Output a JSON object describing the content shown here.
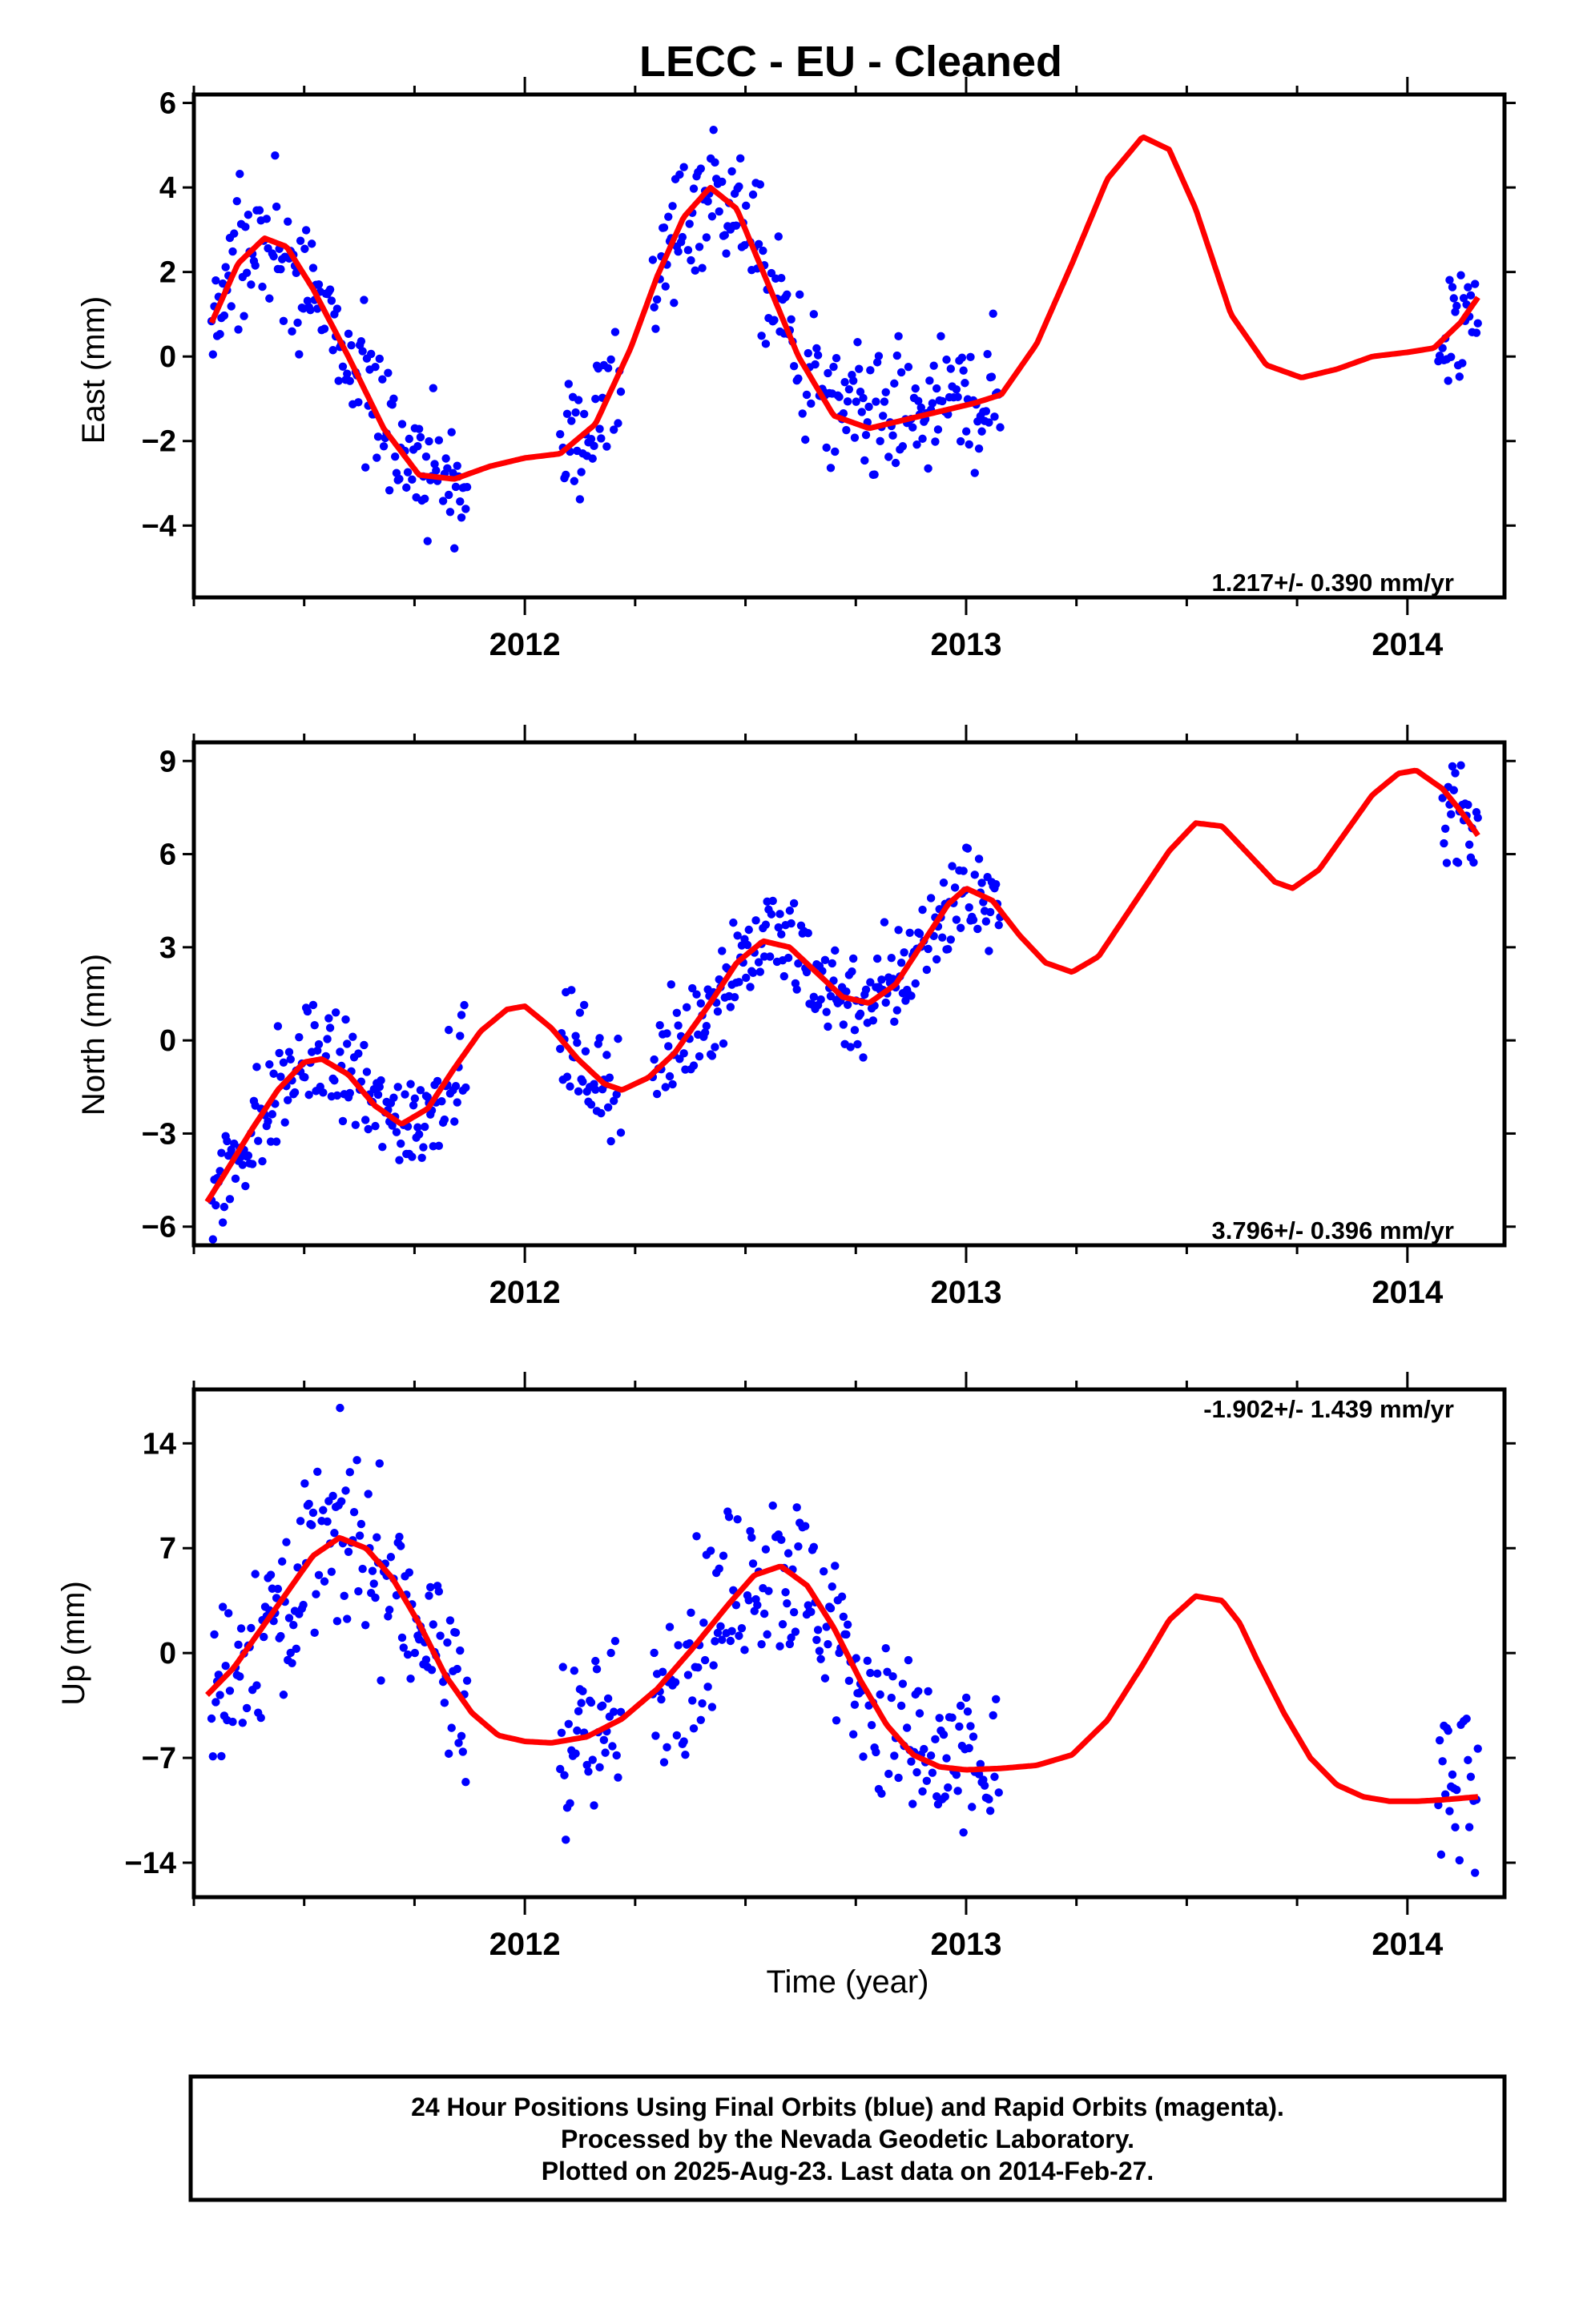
{
  "title": "LECC  - EU - Cleaned",
  "xlabel": "Time (year)",
  "footer": {
    "line1": "24 Hour Positions Using Final Orbits (blue) and Rapid Orbits (magenta).",
    "line2": "Processed by the Nevada Geodetic Laboratory.",
    "line3": "Plotted on 2025-Aug-23. Last data on 2014-Feb-27."
  },
  "colors": {
    "observations": "#0000ff",
    "model_fit": "#ff0000",
    "frame": "#000000"
  },
  "chart_data": [
    {
      "type": "scatter",
      "component": "east",
      "ylabel": "East (mm)",
      "rate_text": "1.217+/- 0.390 mm/yr",
      "rate_placement": "bottom-right",
      "xlim": [
        2011.25,
        2014.22
      ],
      "ylim": [
        -5.7,
        6.2
      ],
      "yticks": [
        -4,
        -2,
        0,
        2,
        4,
        6
      ],
      "xticks": [
        2012,
        2013,
        2014
      ],
      "grid": false,
      "data_segments": [
        [
          2011.29,
          2011.87
        ],
        [
          2012.08,
          2012.22
        ],
        [
          2012.29,
          2013.08
        ],
        [
          2014.07,
          2014.16
        ]
      ],
      "series": [
        {
          "style": "model",
          "x": [
            2011.29,
            2011.35,
            2011.41,
            2011.46,
            2011.52,
            2011.6,
            2011.68,
            2011.76,
            2011.84,
            2011.92,
            2012.0,
            2012.08,
            2012.16,
            2012.24,
            2012.3,
            2012.36,
            2012.42,
            2012.48,
            2012.54,
            2012.62,
            2012.7,
            2012.78,
            2012.86,
            2012.94,
            2013.02,
            2013.08,
            2013.16,
            2013.24,
            2013.32,
            2013.4,
            2013.46,
            2013.52,
            2013.6,
            2013.68,
            2013.76,
            2013.84,
            2013.92,
            2014.0,
            2014.06,
            2014.12,
            2014.16
          ],
          "y": [
            0.8,
            2.2,
            2.8,
            2.6,
            1.6,
            0.0,
            -1.7,
            -2.8,
            -2.9,
            -2.6,
            -2.4,
            -2.3,
            -1.6,
            0.2,
            1.9,
            3.3,
            4.0,
            3.5,
            2.0,
            0.0,
            -1.4,
            -1.7,
            -1.5,
            -1.3,
            -1.1,
            -0.9,
            0.3,
            2.2,
            4.2,
            5.2,
            4.9,
            3.5,
            1.0,
            -0.2,
            -0.5,
            -0.3,
            0.0,
            0.1,
            0.2,
            0.8,
            1.4
          ]
        }
      ]
    },
    {
      "type": "scatter",
      "component": "north",
      "ylabel": "North (mm)",
      "rate_text": "3.796+/- 0.396 mm/yr",
      "rate_placement": "bottom-right",
      "xlim": [
        2011.25,
        2014.22
      ],
      "ylim": [
        -6.6,
        9.6
      ],
      "yticks": [
        -6,
        -3,
        0,
        3,
        6,
        9
      ],
      "xticks": [
        2012,
        2013,
        2014
      ],
      "grid": false,
      "data_segments": [
        [
          2011.29,
          2011.87
        ],
        [
          2012.08,
          2012.22
        ],
        [
          2012.29,
          2013.08
        ],
        [
          2014.07,
          2014.16
        ]
      ],
      "series": [
        {
          "style": "model",
          "x": [
            2011.28,
            2011.32,
            2011.38,
            2011.44,
            2011.5,
            2011.54,
            2011.6,
            2011.66,
            2011.72,
            2011.78,
            2011.84,
            2011.9,
            2011.96,
            2012.0,
            2012.06,
            2012.12,
            2012.18,
            2012.22,
            2012.28,
            2012.34,
            2012.42,
            2012.48,
            2012.54,
            2012.6,
            2012.66,
            2012.72,
            2012.78,
            2012.84,
            2012.9,
            2012.96,
            2013.0,
            2013.06,
            2013.12,
            2013.18,
            2013.24,
            2013.3,
            2013.38,
            2013.46,
            2013.52,
            2013.58,
            2013.64,
            2013.7,
            2013.74,
            2013.8,
            2013.86,
            2013.92,
            2013.98,
            2014.02,
            2014.08,
            2014.12,
            2014.16
          ],
          "y": [
            -5.2,
            -4.3,
            -2.9,
            -1.6,
            -0.7,
            -0.6,
            -1.1,
            -2.1,
            -2.7,
            -2.2,
            -0.9,
            0.3,
            1.0,
            1.1,
            0.4,
            -0.6,
            -1.4,
            -1.6,
            -1.2,
            -0.4,
            1.2,
            2.5,
            3.2,
            3.0,
            2.2,
            1.4,
            1.2,
            1.8,
            3.1,
            4.4,
            4.9,
            4.5,
            3.4,
            2.5,
            2.2,
            2.7,
            4.4,
            6.1,
            7.0,
            6.9,
            6.0,
            5.1,
            4.9,
            5.5,
            6.7,
            7.9,
            8.6,
            8.7,
            8.1,
            7.4,
            6.6
          ]
        }
      ]
    },
    {
      "type": "scatter",
      "component": "up",
      "ylabel": "Up (mm)",
      "rate_text": "-1.902+/- 1.439 mm/yr",
      "rate_placement": "top-right",
      "xlim": [
        2011.25,
        2014.22
      ],
      "ylim": [
        -16.3,
        17.6
      ],
      "yticks": [
        -14,
        -7,
        0,
        7,
        14
      ],
      "xticks": [
        2012,
        2013,
        2014
      ],
      "grid": false,
      "data_segments": [
        [
          2011.29,
          2011.87
        ],
        [
          2012.08,
          2012.22
        ],
        [
          2012.29,
          2013.08
        ],
        [
          2014.07,
          2014.16
        ]
      ],
      "series": [
        {
          "style": "model",
          "x": [
            2011.28,
            2011.34,
            2011.4,
            2011.46,
            2011.52,
            2011.58,
            2011.64,
            2011.7,
            2011.76,
            2011.82,
            2011.88,
            2011.94,
            2012.0,
            2012.06,
            2012.14,
            2012.22,
            2012.3,
            2012.38,
            2012.46,
            2012.52,
            2012.58,
            2012.64,
            2012.7,
            2012.76,
            2012.82,
            2012.88,
            2012.94,
            2013.0,
            2013.08,
            2013.16,
            2013.24,
            2013.32,
            2013.4,
            2013.46,
            2013.52,
            2013.58,
            2013.62,
            2013.66,
            2013.72,
            2013.78,
            2013.84,
            2013.9,
            2013.96,
            2014.02,
            2014.08,
            2014.16
          ],
          "y": [
            -2.8,
            -1.0,
            1.5,
            4.0,
            6.5,
            7.7,
            7.0,
            5.0,
            2.0,
            -1.5,
            -4.0,
            -5.5,
            -5.9,
            -6.0,
            -5.6,
            -4.4,
            -2.4,
            0.3,
            3.2,
            5.2,
            5.8,
            4.5,
            1.7,
            -1.8,
            -4.8,
            -6.8,
            -7.6,
            -7.8,
            -7.7,
            -7.5,
            -6.8,
            -4.5,
            -0.8,
            2.2,
            3.8,
            3.5,
            2.0,
            -0.5,
            -4.0,
            -7.0,
            -8.8,
            -9.6,
            -9.9,
            -9.9,
            -9.8,
            -9.6
          ]
        }
      ]
    }
  ]
}
